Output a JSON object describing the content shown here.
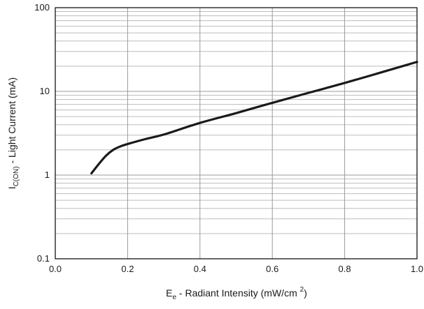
{
  "chart_data": {
    "type": "line",
    "title": "",
    "xscale": "linear",
    "yscale": "log",
    "xlim": [
      0.0,
      1.0
    ],
    "ylim": [
      0.1,
      100
    ],
    "grid": true,
    "xticks": [
      "0.0",
      "0.2",
      "0.4",
      "0.6",
      "0.8",
      "1.0"
    ],
    "xtick_values": [
      0.0,
      0.2,
      0.4,
      0.6,
      0.8,
      1.0
    ],
    "yticks": [
      "0.1",
      "1",
      "10",
      "100"
    ],
    "ytick_values": [
      0.1,
      1,
      10,
      100
    ],
    "xlabel": {
      "main": "E",
      "sub": "e",
      "rest": " - Radiant Intensity (mW/cm ",
      "sup": "2",
      "end": ")"
    },
    "ylabel": {
      "main": "I",
      "sub": "C(ON)",
      "rest": " - Light Current (mA)"
    },
    "series": [
      {
        "x": [
          0.1,
          0.12,
          0.14,
          0.16,
          0.18,
          0.2,
          0.25,
          0.3,
          0.4,
          0.5,
          0.6,
          0.7,
          0.8,
          0.9,
          1.0
        ],
        "y": [
          1.05,
          1.35,
          1.7,
          2.0,
          2.2,
          2.35,
          2.7,
          3.05,
          4.2,
          5.5,
          7.3,
          9.6,
          12.6,
          16.8,
          22.5
        ]
      }
    ]
  }
}
